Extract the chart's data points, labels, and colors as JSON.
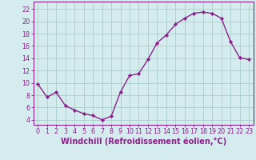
{
  "x": [
    0,
    1,
    2,
    3,
    4,
    5,
    6,
    7,
    8,
    9,
    10,
    11,
    12,
    13,
    14,
    15,
    16,
    17,
    18,
    19,
    20,
    21,
    22,
    23
  ],
  "y": [
    9.8,
    7.7,
    8.5,
    6.3,
    5.6,
    5.0,
    4.7,
    4.0,
    4.6,
    8.5,
    11.2,
    11.5,
    13.8,
    16.5,
    17.8,
    19.5,
    20.5,
    21.3,
    21.5,
    21.3,
    20.5,
    16.7,
    14.1,
    13.8
  ],
  "line_color": "#882288",
  "marker": "D",
  "marker_size": 2.2,
  "bg_color": "#d5ecee",
  "grid_color": "#aacccc",
  "xlabel": "Windchill (Refroidissement éolien,°C)",
  "xlabel_fontsize": 7,
  "ylabel_ticks": [
    4,
    6,
    8,
    10,
    12,
    14,
    16,
    18,
    20,
    22
  ],
  "xlim": [
    -0.5,
    23.5
  ],
  "ylim": [
    3.2,
    23.2
  ],
  "xtick_labels": [
    "0",
    "1",
    "2",
    "3",
    "4",
    "5",
    "6",
    "7",
    "8",
    "9",
    "10",
    "11",
    "12",
    "13",
    "14",
    "15",
    "16",
    "17",
    "18",
    "19",
    "20",
    "21",
    "22",
    "23"
  ],
  "tick_color": "#882288",
  "tick_fontsize": 5.8,
  "axis_label_color": "#882288",
  "spine_color": "#882288",
  "line_width": 1.0
}
